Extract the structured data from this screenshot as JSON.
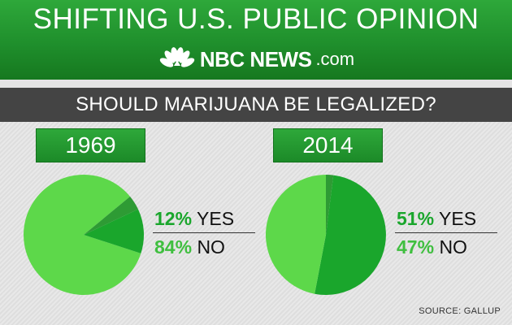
{
  "header": {
    "title": "SHIFTING U.S. PUBLIC OPINION",
    "logo_main": "NBC NEWS",
    "logo_suffix": ".com"
  },
  "question": "SHOULD MARIJUANA BE LEGALIZED?",
  "source": "SOURCE: GALLUP",
  "colors": {
    "yes": "#1aa62c",
    "no": "#5dd84a",
    "other": "#2e9b34",
    "header_green": "#1f8f2c",
    "question_bar": "#444444"
  },
  "chart_data": [
    {
      "type": "pie",
      "title": "1969",
      "slices": [
        {
          "label": "YES",
          "value": 12,
          "display": "12%"
        },
        {
          "label": "NO",
          "value": 84,
          "display": "84%"
        },
        {
          "label": "",
          "value": 4
        }
      ]
    },
    {
      "type": "pie",
      "title": "2014",
      "slices": [
        {
          "label": "YES",
          "value": 51,
          "display": "51%"
        },
        {
          "label": "NO",
          "value": 47,
          "display": "47%"
        },
        {
          "label": "",
          "value": 2
        }
      ]
    }
  ]
}
